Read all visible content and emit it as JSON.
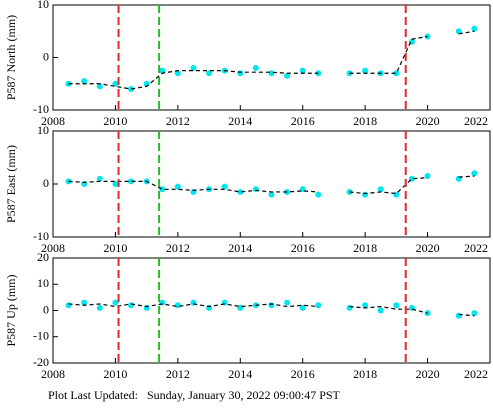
{
  "chart_data": [
    {
      "type": "scatter",
      "ylabel": "P587 North (mm)",
      "x": [
        2008.5,
        2009,
        2009.5,
        2010,
        2010.5,
        2011,
        2011.5,
        2012,
        2012.5,
        2013,
        2013.5,
        2014,
        2014.5,
        2015,
        2015.5,
        2016,
        2016.5,
        2017,
        2017.5,
        2018,
        2018.5,
        2019,
        2019.5,
        2020,
        2020.5,
        2021,
        2021.5
      ],
      "series": [
        {
          "color": "#00e5ee",
          "values": [
            -5,
            -4.5,
            -5.5,
            -5,
            -6,
            -5,
            -2.5,
            -3,
            -2,
            -3,
            -2.5,
            -3,
            -2,
            -3,
            -3.5,
            -2.5,
            -3,
            null,
            -3,
            -2.5,
            -3,
            -3,
            3,
            4,
            null,
            5,
            5.5
          ]
        },
        {
          "color": "#000000",
          "dashed": true,
          "values": [
            -5,
            -5,
            -5,
            -5.5,
            -6,
            -5.5,
            -3,
            -2.5,
            -2.5,
            -2.5,
            -2.5,
            -2.8,
            -2.8,
            -2.8,
            -3,
            -3,
            -3,
            null,
            -3,
            -3,
            -3,
            -3,
            3.5,
            4,
            null,
            4.5,
            5
          ]
        }
      ],
      "events": [
        {
          "x": 2010.1,
          "color": "#e8262b"
        },
        {
          "x": 2011.4,
          "color": "#22bb22"
        },
        {
          "x": 2019.3,
          "color": "#e8262b"
        }
      ],
      "xlim": [
        2008,
        2022
      ],
      "xticks": [
        2008,
        2010,
        2012,
        2014,
        2016,
        2018,
        2020,
        2022
      ],
      "ylim": [
        -10,
        10
      ],
      "yticks": [
        -10,
        0,
        10
      ]
    },
    {
      "type": "scatter",
      "ylabel": "P587 East (mm)",
      "x": [
        2008.5,
        2009,
        2009.5,
        2010,
        2010.5,
        2011,
        2011.5,
        2012,
        2012.5,
        2013,
        2013.5,
        2014,
        2014.5,
        2015,
        2015.5,
        2016,
        2016.5,
        2017,
        2017.5,
        2018,
        2018.5,
        2019,
        2019.5,
        2020,
        2020.5,
        2021,
        2021.5
      ],
      "series": [
        {
          "color": "#00e5ee",
          "values": [
            0.5,
            0,
            1,
            0,
            0.5,
            0.5,
            -1,
            -0.5,
            -1.5,
            -1,
            -0.5,
            -1.5,
            -1,
            -2,
            -1.5,
            -1,
            -2,
            null,
            -1.5,
            -2,
            -1,
            -2,
            1,
            1.5,
            null,
            1,
            2
          ]
        },
        {
          "color": "#000000",
          "dashed": true,
          "values": [
            0.5,
            0.3,
            0.5,
            0.5,
            0.5,
            0.5,
            -1,
            -1,
            -1.2,
            -1,
            -1,
            -1.5,
            -1.2,
            -1.5,
            -1.5,
            -1.3,
            -1.5,
            null,
            -1.5,
            -1.8,
            -1.5,
            -1.8,
            1,
            1.2,
            null,
            1.3,
            1.5
          ]
        }
      ],
      "events": [
        {
          "x": 2010.1,
          "color": "#e8262b"
        },
        {
          "x": 2011.4,
          "color": "#22bb22"
        },
        {
          "x": 2019.3,
          "color": "#e8262b"
        }
      ],
      "xlim": [
        2008,
        2022
      ],
      "xticks": [
        2008,
        2010,
        2012,
        2014,
        2016,
        2018,
        2020,
        2022
      ],
      "ylim": [
        -10,
        10
      ],
      "yticks": [
        -10,
        0,
        10
      ]
    },
    {
      "type": "scatter",
      "ylabel": "P587 Up (mm)",
      "x": [
        2008.5,
        2009,
        2009.5,
        2010,
        2010.5,
        2011,
        2011.5,
        2012,
        2012.5,
        2013,
        2013.5,
        2014,
        2014.5,
        2015,
        2015.5,
        2016,
        2016.5,
        2017,
        2017.5,
        2018,
        2018.5,
        2019,
        2019.5,
        2020,
        2020.5,
        2021,
        2021.5
      ],
      "series": [
        {
          "color": "#00e5ee",
          "values": [
            2,
            3,
            1,
            3,
            2,
            1,
            3,
            2,
            3,
            1,
            3,
            1,
            2,
            2,
            3,
            1,
            2,
            null,
            1,
            2,
            0,
            2,
            1,
            -1,
            null,
            -2,
            -1
          ]
        },
        {
          "color": "#000000",
          "dashed": true,
          "values": [
            2.5,
            2,
            2.5,
            1.5,
            2.5,
            1.5,
            2.5,
            1.5,
            2.5,
            1.5,
            2.5,
            1.5,
            2,
            2.5,
            1.5,
            2,
            1.5,
            null,
            1.5,
            1,
            1.5,
            0.5,
            0.5,
            -1,
            null,
            -1.5,
            -2
          ]
        }
      ],
      "events": [
        {
          "x": 2010.1,
          "color": "#e8262b"
        },
        {
          "x": 2011.4,
          "color": "#22bb22"
        },
        {
          "x": 2019.3,
          "color": "#e8262b"
        }
      ],
      "xlim": [
        2008,
        2022
      ],
      "xticks": [
        2008,
        2010,
        2012,
        2014,
        2016,
        2018,
        2020,
        2022
      ],
      "ylim": [
        -20,
        20
      ],
      "yticks": [
        -20,
        -10,
        0,
        10,
        20
      ]
    }
  ],
  "footer": "Plot Last Updated:   Sunday, January 30, 2022 09:00:47 PST"
}
